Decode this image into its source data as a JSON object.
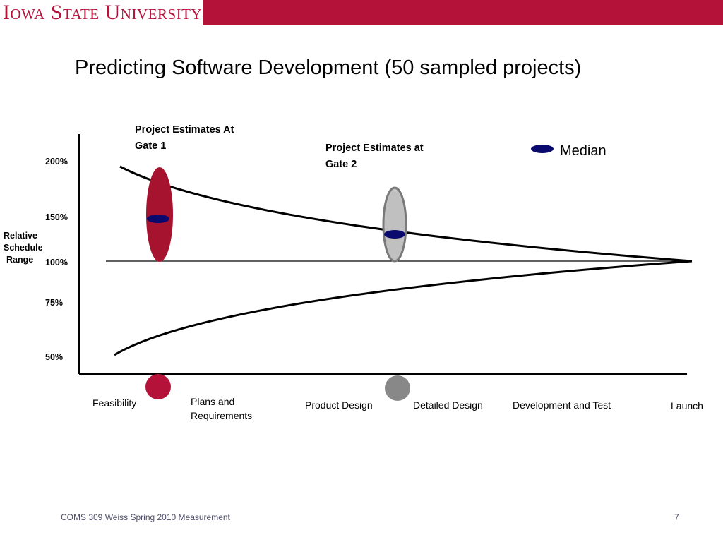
{
  "header": {
    "logo_text": "Iowa State University"
  },
  "slide": {
    "title": "Predicting Software Development (50 sampled projects)",
    "y_axis_label": [
      "Relative",
      "Schedule",
      "Range"
    ],
    "y_ticks": [
      "200%",
      "150%",
      "100%",
      "75%",
      "50%"
    ],
    "gate1_label": [
      "Project Estimates At",
      "Gate 1"
    ],
    "gate2_label": [
      "Project Estimates at",
      "Gate 2"
    ],
    "legend_median": "Median",
    "phases": {
      "feasibility": "Feasibility",
      "plans": [
        "Plans and",
        "Requirements"
      ],
      "product_design": "Product Design",
      "detailed_design": "Detailed Design",
      "dev_test": "Development and Test",
      "launch": "Launch"
    }
  },
  "footer": {
    "course": "COMS 309 Weiss Spring 2010 Measurement",
    "page_number": "7"
  },
  "colors": {
    "brand": "#b5123a",
    "gate1_fill": "#a6132e",
    "gate2_fill": "#c0c0c0",
    "gate2_marker": "#888888",
    "median": "#0a0a6e"
  }
}
